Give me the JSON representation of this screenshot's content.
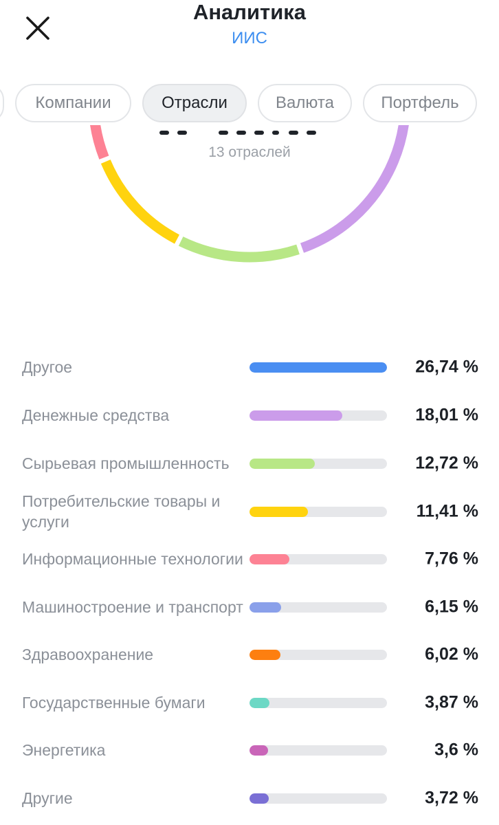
{
  "header": {
    "title": "Аналитика",
    "subtitle": "ИИС"
  },
  "tabs": [
    {
      "label": "Компании",
      "active": false
    },
    {
      "label": "Отрасли",
      "active": true
    },
    {
      "label": "Валюта",
      "active": false
    },
    {
      "label": "Портфель",
      "active": false
    }
  ],
  "donut": {
    "caption": "13 отраслей"
  },
  "colors": {
    "accent": "#3d8ef0"
  },
  "chart_data": {
    "type": "bar",
    "categories": [
      "Другое",
      "Денежные средства",
      "Сырьевая промышленность",
      "Потребительские товары и услуги",
      "Информационные технологии",
      "Машиностроение и транспорт",
      "Здравоохранение",
      "Государственные бумаги",
      "Энергетика",
      "Другие"
    ],
    "values": [
      26.74,
      18.01,
      12.72,
      11.41,
      7.76,
      6.15,
      6.02,
      3.87,
      3.6,
      3.72
    ],
    "value_labels": [
      "26,74 %",
      "18,01 %",
      "12,72 %",
      "11,41 %",
      "7,76 %",
      "6,15 %",
      "6,02 %",
      "3,87 %",
      "3,6 %",
      "3,72 %"
    ],
    "colors": [
      "#4a8ef2",
      "#cb9cea",
      "#b8e786",
      "#ffd30f",
      "#fd8294",
      "#8aa0ea",
      "#fd7f10",
      "#6cd8c5",
      "#c965b8",
      "#7a6fd5"
    ],
    "xlim": [
      0,
      26.74
    ]
  }
}
